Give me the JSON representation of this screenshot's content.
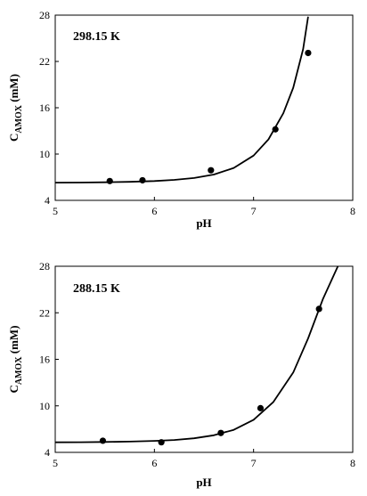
{
  "chart_data": [
    {
      "type": "scatter",
      "title": "",
      "annotation": "298.15 K",
      "xlabel": "pH",
      "ylabel": "C",
      "ylabel_sub": "AMOX",
      "ylabel_unit": " (mM)",
      "xlim": [
        5,
        8
      ],
      "ylim": [
        4,
        28
      ],
      "xticks": [
        5,
        6,
        7,
        8
      ],
      "yticks": [
        4,
        10,
        16,
        22,
        28
      ],
      "grid": false,
      "series": [
        {
          "kind": "points",
          "x": [
            5.55,
            5.88,
            6.57,
            7.22,
            7.55
          ],
          "y": [
            6.5,
            6.6,
            7.9,
            13.2,
            23.1
          ]
        },
        {
          "kind": "fit-curve",
          "x": [
            5.0,
            5.25,
            5.5,
            5.75,
            6.0,
            6.2,
            6.4,
            6.6,
            6.8,
            7.0,
            7.15,
            7.3,
            7.4,
            7.5,
            7.55
          ],
          "y": [
            6.3,
            6.31,
            6.34,
            6.4,
            6.5,
            6.65,
            6.9,
            7.35,
            8.2,
            9.8,
            11.9,
            15.3,
            18.6,
            23.6,
            27.8
          ]
        }
      ]
    },
    {
      "type": "scatter",
      "title": "",
      "annotation": "288.15 K",
      "xlabel": "pH",
      "ylabel": "C",
      "ylabel_sub": "AMOX",
      "ylabel_unit": " (mM)",
      "xlim": [
        5,
        8
      ],
      "ylim": [
        4,
        28
      ],
      "xticks": [
        5,
        6,
        7,
        8
      ],
      "yticks": [
        4,
        10,
        16,
        22,
        28
      ],
      "grid": false,
      "series": [
        {
          "kind": "points",
          "x": [
            5.48,
            6.07,
            6.67,
            7.07,
            7.66
          ],
          "y": [
            5.5,
            5.3,
            6.5,
            9.7,
            22.5
          ]
        },
        {
          "kind": "fit-curve",
          "x": [
            5.0,
            5.25,
            5.5,
            5.75,
            6.0,
            6.2,
            6.4,
            6.6,
            6.8,
            7.0,
            7.2,
            7.4,
            7.55,
            7.7,
            7.85
          ],
          "y": [
            5.3,
            5.31,
            5.34,
            5.39,
            5.48,
            5.6,
            5.82,
            6.2,
            6.9,
            8.2,
            10.5,
            14.3,
            18.7,
            23.8,
            28.0
          ]
        }
      ]
    }
  ]
}
